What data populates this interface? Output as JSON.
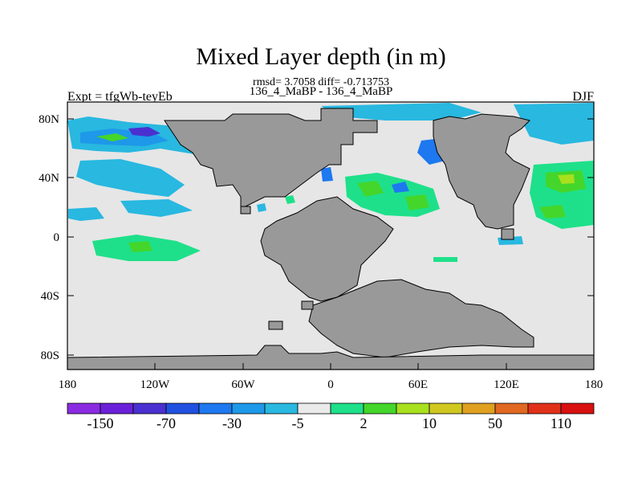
{
  "header": {
    "title": "Mixed Layer depth (in m)",
    "stats": "rmsd= 3.7058 diff= -0.713753",
    "comparison": "136_4_MaBP - 136_4_MaBP",
    "experiment": "Expt = tfgWb-teyEb",
    "season": "DJF"
  },
  "axes": {
    "lat_ticks": [
      "80N",
      "40N",
      "0",
      "40S",
      "80S"
    ],
    "lon_ticks": [
      "180",
      "120W",
      "60W",
      "0",
      "60E",
      "120E",
      "180"
    ]
  },
  "colorbar": {
    "colors": [
      "#8a2be2",
      "#6a20d8",
      "#4a30d0",
      "#2050e0",
      "#1e78f0",
      "#1e98e8",
      "#28b8e0",
      "#eaeaea",
      "#1ee08a",
      "#44d62a",
      "#a8e01e",
      "#d0c820",
      "#e0a020",
      "#e06820",
      "#e03018",
      "#d81010"
    ],
    "labels": [
      "-150",
      "-70",
      "-30",
      "-5",
      "2",
      "10",
      "50",
      "110"
    ]
  },
  "map": {
    "land_color": "#999999",
    "ocean_color": "#e6e6e6"
  }
}
